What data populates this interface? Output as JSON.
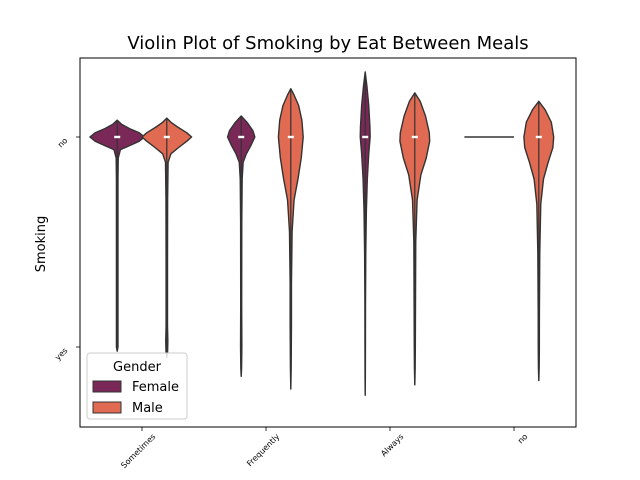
{
  "chart_data": {
    "type": "violin",
    "title": "Violin Plot of Smoking by Eat Between Meals",
    "xlabel": "",
    "ylabel": "Smoking",
    "categories": [
      "Sometimes",
      "Frequently",
      "Always",
      "no"
    ],
    "y_categories": [
      "no",
      "yes"
    ],
    "ylim": [
      -0.38,
      1.4
    ],
    "legend": {
      "title": "Gender",
      "position": "lower-left",
      "entries": [
        {
          "label": "Female",
          "color": "#7a2858"
        },
        {
          "label": "Male",
          "color": "#e06b52"
        }
      ]
    },
    "series": [
      {
        "name": "Female",
        "color": "#7a2858",
        "violins": [
          {
            "category": "Sometimes",
            "ymin": -0.08,
            "ymax": 1.02,
            "max_half_width": 0.22,
            "median": 0,
            "profile": [
              [
                -0.08,
                0.0
              ],
              [
                -0.06,
                0.07
              ],
              [
                -0.04,
                0.19
              ],
              [
                -0.02,
                0.34
              ],
              [
                0.0,
                0.42
              ],
              [
                0.02,
                0.34
              ],
              [
                0.04,
                0.2
              ],
              [
                0.06,
                0.05
              ],
              [
                0.1,
                0.016
              ],
              [
                0.2,
                0.012
              ],
              [
                0.5,
                0.012
              ],
              [
                0.8,
                0.012
              ],
              [
                0.95,
                0.012
              ],
              [
                1.0,
                0.012
              ],
              [
                1.02,
                0.0
              ]
            ]
          },
          {
            "category": "Frequently",
            "ymin": -0.1,
            "ymax": 1.14,
            "max_half_width": 0.11,
            "median": 0,
            "profile": [
              [
                -0.1,
                0.0
              ],
              [
                -0.07,
                0.18
              ],
              [
                -0.03,
                0.36
              ],
              [
                0.0,
                0.42
              ],
              [
                0.04,
                0.3
              ],
              [
                0.08,
                0.16
              ],
              [
                0.12,
                0.06
              ],
              [
                0.2,
                0.03
              ],
              [
                0.4,
                0.018
              ],
              [
                0.8,
                0.015
              ],
              [
                1.0,
                0.02
              ],
              [
                1.1,
                0.012
              ],
              [
                1.14,
                0.0
              ]
            ]
          },
          {
            "category": "Always",
            "ymin": -0.31,
            "ymax": 1.23,
            "max_half_width": 0.04,
            "median": 0,
            "profile": [
              [
                -0.31,
                0.0
              ],
              [
                -0.24,
                0.15
              ],
              [
                -0.15,
                0.3
              ],
              [
                -0.05,
                0.4
              ],
              [
                0.0,
                0.42
              ],
              [
                0.08,
                0.3
              ],
              [
                0.2,
                0.18
              ],
              [
                0.35,
                0.1
              ],
              [
                0.55,
                0.05
              ],
              [
                0.8,
                0.025
              ],
              [
                1.0,
                0.02
              ],
              [
                1.15,
                0.012
              ],
              [
                1.23,
                0.0
              ]
            ]
          },
          {
            "category": "no",
            "ymin": 0.0,
            "ymax": 0.0,
            "max_half_width": 0.2,
            "median": 0,
            "degenerate": true,
            "profile": []
          }
        ]
      },
      {
        "name": "Male",
        "color": "#e06b52",
        "violins": [
          {
            "category": "Sometimes",
            "ymin": -0.09,
            "ymax": 1.05,
            "max_half_width": 0.2,
            "median": 0,
            "profile": [
              [
                -0.09,
                0.0
              ],
              [
                -0.07,
                0.07
              ],
              [
                -0.05,
                0.17
              ],
              [
                -0.02,
                0.34
              ],
              [
                0.0,
                0.42
              ],
              [
                0.02,
                0.34
              ],
              [
                0.05,
                0.2
              ],
              [
                0.08,
                0.07
              ],
              [
                0.12,
                0.022
              ],
              [
                0.3,
                0.014
              ],
              [
                0.6,
                0.012
              ],
              [
                0.9,
                0.012
              ],
              [
                0.97,
                0.018
              ],
              [
                1.02,
                0.014
              ],
              [
                1.05,
                0.0
              ]
            ]
          },
          {
            "category": "Frequently",
            "ymin": -0.23,
            "ymax": 1.2,
            "max_half_width": 0.1,
            "median": 0,
            "profile": [
              [
                -0.23,
                0.0
              ],
              [
                -0.2,
                0.1
              ],
              [
                -0.15,
                0.24
              ],
              [
                -0.08,
                0.34
              ],
              [
                0.0,
                0.38
              ],
              [
                0.1,
                0.32
              ],
              [
                0.2,
                0.22
              ],
              [
                0.3,
                0.1
              ],
              [
                0.45,
                0.04
              ],
              [
                0.7,
                0.02
              ],
              [
                0.9,
                0.02
              ],
              [
                1.1,
                0.012
              ],
              [
                1.2,
                0.0
              ]
            ]
          },
          {
            "category": "Always",
            "ymin": -0.21,
            "ymax": 1.18,
            "max_half_width": 0.12,
            "median": 0,
            "profile": [
              [
                -0.21,
                0.0
              ],
              [
                -0.17,
                0.14
              ],
              [
                -0.1,
                0.28
              ],
              [
                -0.02,
                0.38
              ],
              [
                0.02,
                0.39
              ],
              [
                0.1,
                0.3
              ],
              [
                0.18,
                0.16
              ],
              [
                0.3,
                0.06
              ],
              [
                0.5,
                0.025
              ],
              [
                0.8,
                0.018
              ],
              [
                1.0,
                0.014
              ],
              [
                1.1,
                0.01
              ],
              [
                1.18,
                0.0
              ]
            ]
          },
          {
            "category": "no",
            "ymin": -0.17,
            "ymax": 1.16,
            "max_half_width": 0.12,
            "median": 0,
            "profile": [
              [
                -0.17,
                0.0
              ],
              [
                -0.13,
                0.16
              ],
              [
                -0.07,
                0.32
              ],
              [
                0.0,
                0.38
              ],
              [
                0.05,
                0.36
              ],
              [
                0.12,
                0.24
              ],
              [
                0.2,
                0.12
              ],
              [
                0.32,
                0.05
              ],
              [
                0.55,
                0.025
              ],
              [
                0.85,
                0.015
              ],
              [
                1.0,
                0.014
              ],
              [
                1.1,
                0.01
              ],
              [
                1.16,
                0.0
              ]
            ]
          }
        ]
      }
    ],
    "grid": false
  }
}
